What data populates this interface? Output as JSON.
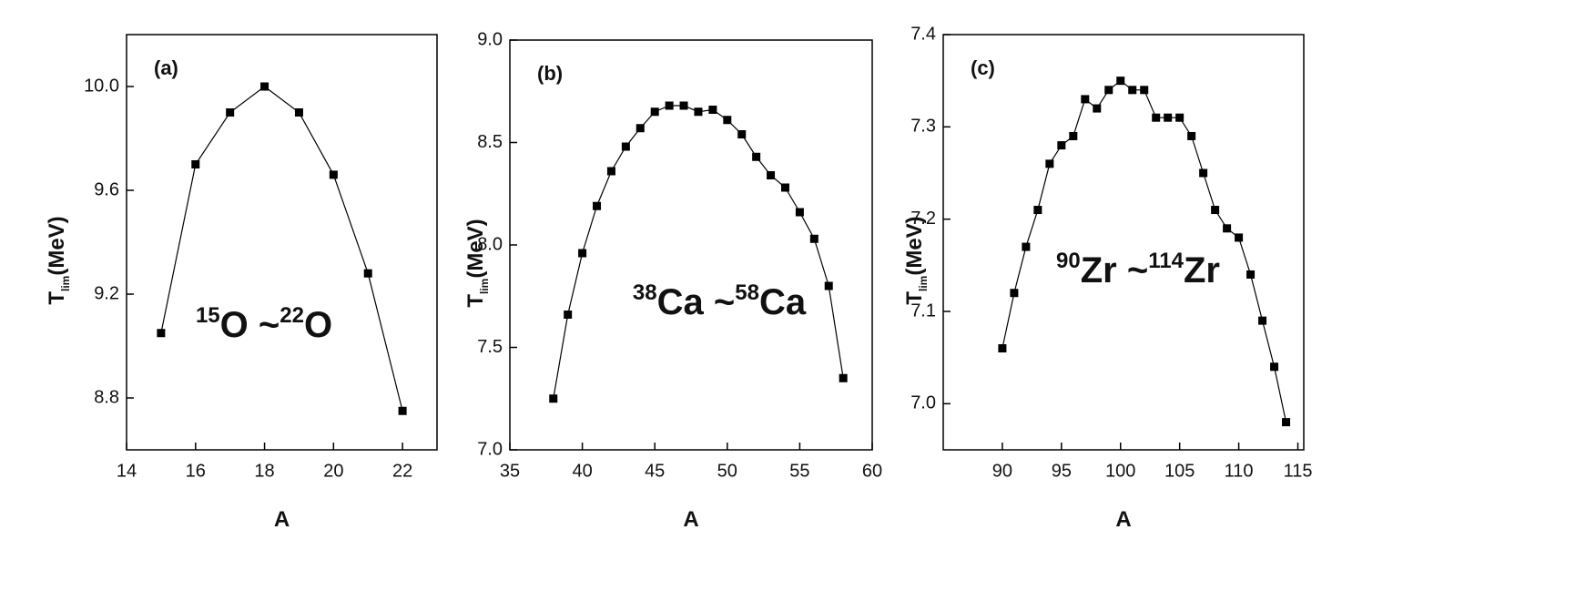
{
  "chart_data": [
    {
      "type": "line",
      "title": "(a)",
      "x_label": "A",
      "y_label": [
        "T",
        "lim",
        "(MeV)"
      ],
      "annotation": [
        "15",
        "O ~",
        "22",
        "O"
      ],
      "x": [
        15,
        16,
        17,
        18,
        19,
        20,
        21,
        22
      ],
      "series": [
        {
          "color": "#000000",
          "values": [
            9.05,
            9.7,
            9.9,
            10.0,
            9.9,
            9.66,
            9.28,
            8.75
          ]
        }
      ],
      "xlim": [
        14,
        23
      ],
      "xticks": [
        14,
        16,
        18,
        20,
        22
      ],
      "ylim": [
        8.6,
        10.2
      ],
      "yticks": [
        8.8,
        9.2,
        9.6,
        {
          "value": 10,
          "label": "10.0"
        }
      ]
    },
    {
      "type": "line",
      "title": "(b)",
      "x_label": "A",
      "y_label": [
        "T",
        "lim",
        "(MeV)"
      ],
      "annotation": [
        "38",
        "Ca ~",
        "58",
        "Ca"
      ],
      "x": [
        38,
        39,
        40,
        41,
        42,
        43,
        44,
        45,
        46,
        47,
        48,
        49,
        50,
        51,
        52,
        53,
        54,
        55,
        56,
        57,
        58
      ],
      "series": [
        {
          "color": "#000000",
          "values": [
            7.25,
            7.66,
            7.96,
            8.19,
            8.36,
            8.48,
            8.57,
            8.65,
            8.68,
            8.68,
            8.65,
            8.66,
            8.61,
            8.54,
            8.43,
            8.34,
            8.28,
            8.16,
            8.03,
            7.8,
            7.35
          ]
        }
      ],
      "xlim": [
        35,
        60
      ],
      "xticks": [
        35,
        40,
        45,
        50,
        55,
        60
      ],
      "ylim": [
        7.0,
        9.0
      ],
      "yticks": [
        {
          "value": 7,
          "label": "7.0"
        },
        7.5,
        {
          "value": 8,
          "label": "8.0"
        },
        8.5,
        {
          "value": 9,
          "label": "9.0"
        }
      ]
    },
    {
      "type": "line",
      "title": "(c)",
      "x_label": "A",
      "y_label": [
        "T",
        "lim",
        "(MeV)"
      ],
      "annotation": [
        "90",
        "Zr ~",
        "114",
        "Zr"
      ],
      "x": [
        90,
        91,
        92,
        93,
        94,
        95,
        96,
        97,
        98,
        99,
        100,
        101,
        102,
        103,
        104,
        105,
        106,
        107,
        108,
        109,
        110,
        111,
        112,
        113,
        114
      ],
      "series": [
        {
          "color": "#000000",
          "values": [
            7.06,
            7.12,
            7.17,
            7.21,
            7.26,
            7.28,
            7.29,
            7.33,
            7.32,
            7.34,
            7.35,
            7.34,
            7.34,
            7.31,
            7.31,
            7.31,
            7.29,
            7.25,
            7.21,
            7.19,
            7.18,
            7.14,
            7.09,
            7.04,
            6.98
          ]
        }
      ],
      "xlim": [
        85,
        115.5
      ],
      "xticks": [
        90,
        95,
        100,
        105,
        110,
        115
      ],
      "ylim": [
        6.95,
        7.4
      ],
      "yticks": [
        {
          "value": 7,
          "label": "7.0"
        },
        7.1,
        7.2,
        7.3,
        7.4
      ]
    }
  ]
}
